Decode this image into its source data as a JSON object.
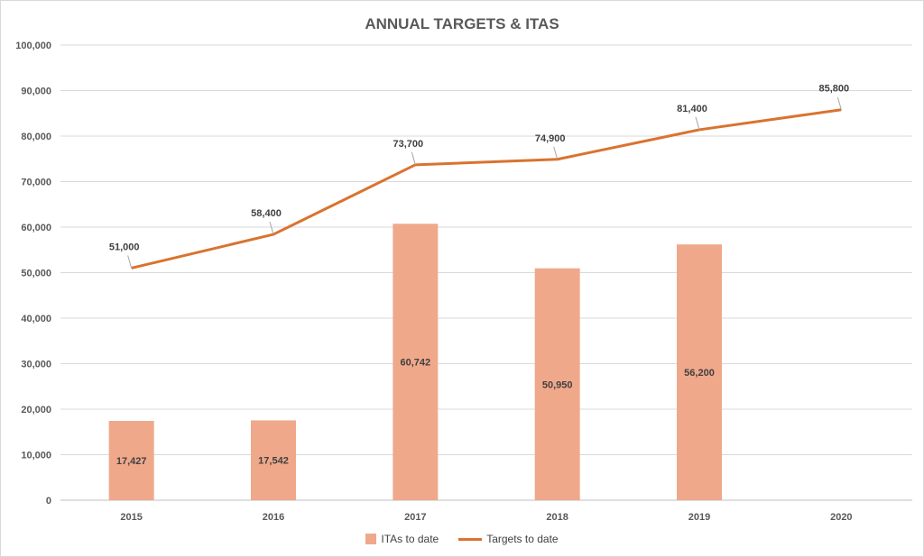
{
  "chart_data": {
    "type": "bar",
    "title": "ANNUAL TARGETS & ITAS",
    "categories": [
      "2015",
      "2016",
      "2017",
      "2018",
      "2019",
      "2020"
    ],
    "ylim": [
      0,
      100000
    ],
    "yticks": [
      0,
      10000,
      20000,
      30000,
      40000,
      50000,
      60000,
      70000,
      80000,
      90000,
      100000
    ],
    "ytick_labels": [
      "0",
      "10,000",
      "20,000",
      "30,000",
      "40,000",
      "50,000",
      "60,000",
      "70,000",
      "80,000",
      "90,000",
      "100,000"
    ],
    "grid": true,
    "legend_position": "bottom",
    "series": [
      {
        "name": "ITAs to date",
        "type": "bar",
        "color": "#f0a88b",
        "values": [
          17427,
          17542,
          60742,
          50950,
          56200,
          null
        ],
        "labels": [
          "17,427",
          "17,542",
          "60,742",
          "50,950",
          "56,200",
          ""
        ]
      },
      {
        "name": "Targets to date",
        "type": "line",
        "color": "#d9732f",
        "values": [
          51000,
          58400,
          73700,
          74900,
          81400,
          85800
        ],
        "labels": [
          "51,000",
          "58,400",
          "73,700",
          "74,900",
          "81,400",
          "85,800"
        ]
      }
    ]
  }
}
